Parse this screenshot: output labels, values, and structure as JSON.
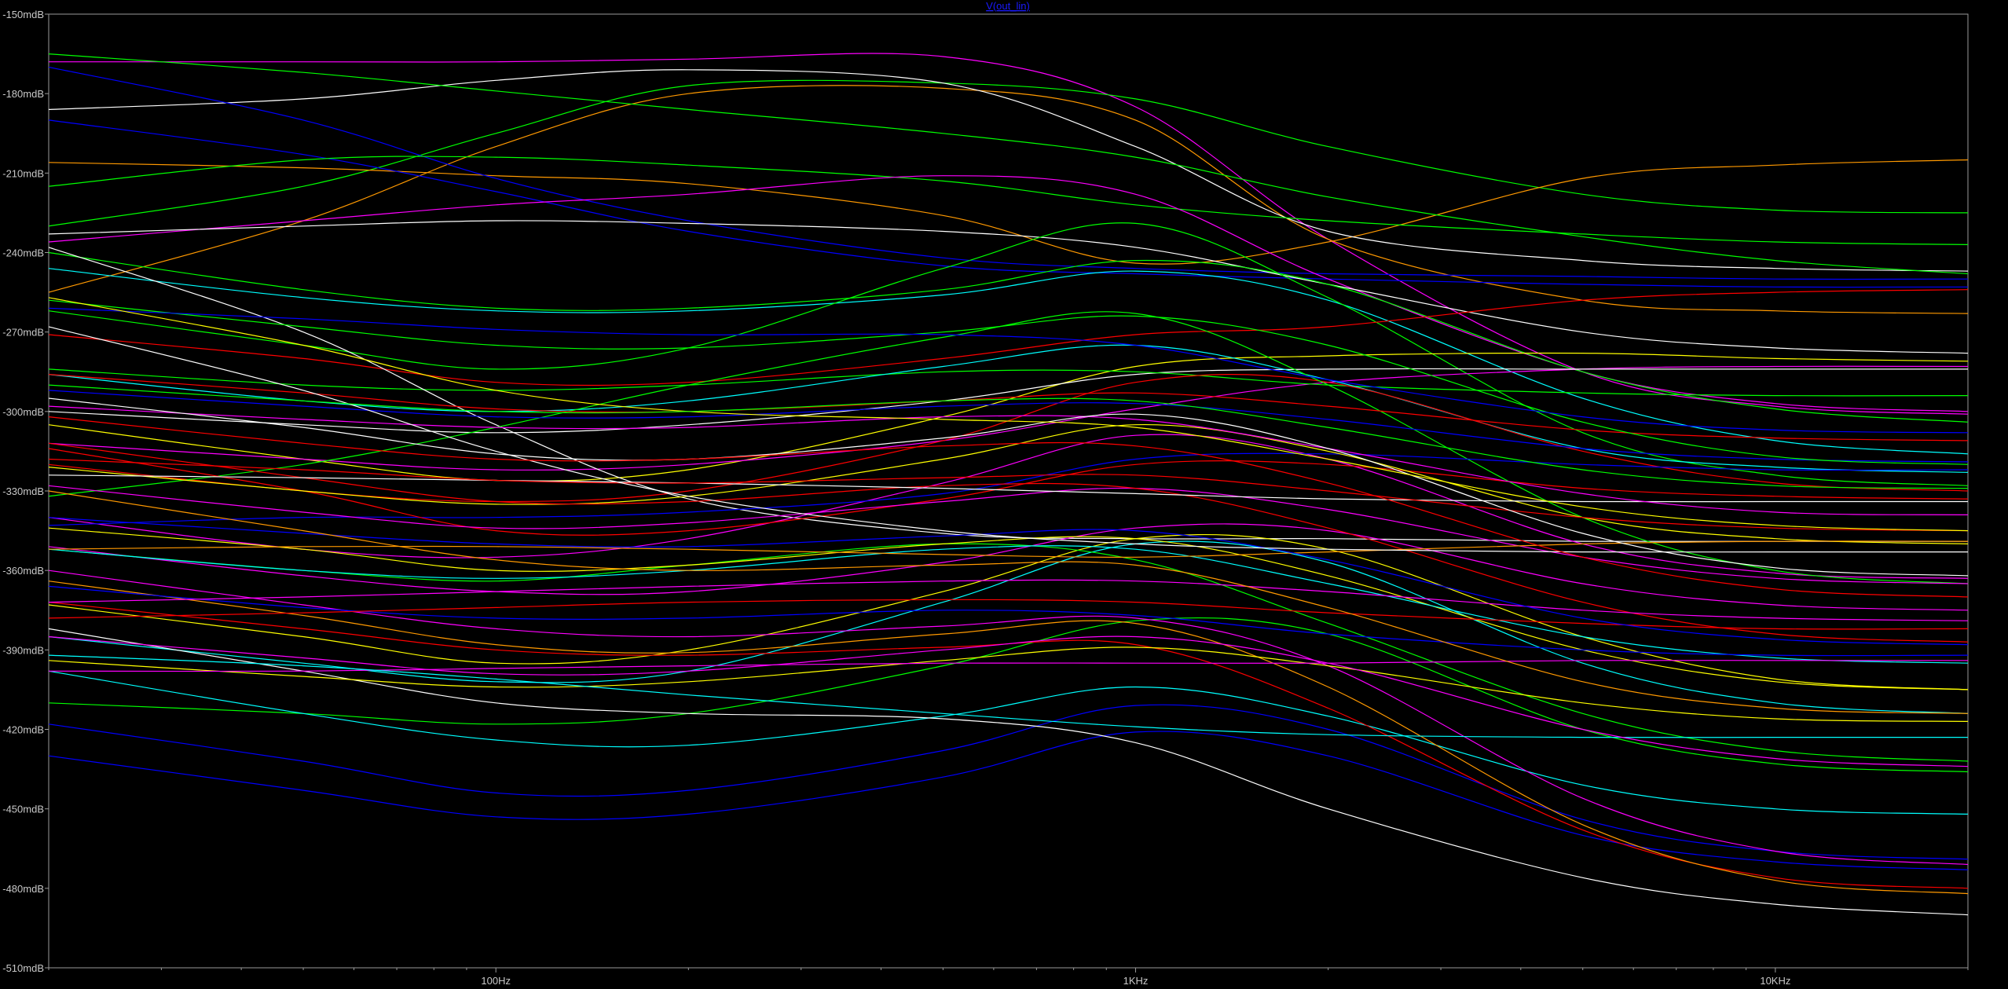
{
  "window": {
    "trace_title": "V(out_lin)"
  },
  "chart_data": {
    "type": "line",
    "title": "V(out_lin)",
    "xlabel": "",
    "ylabel": "",
    "x_scale": "log",
    "xlim": [
      20,
      20000
    ],
    "ylim": [
      -510,
      -150
    ],
    "y_unit": "mdB",
    "grid": false,
    "legend": "none",
    "x_ticks": [
      {
        "value": 100,
        "label": "100Hz"
      },
      {
        "value": 1000,
        "label": "1KHz"
      },
      {
        "value": 10000,
        "label": "10KHz"
      }
    ],
    "y_ticks": [
      {
        "value": -150,
        "label": "-150mdB"
      },
      {
        "value": -180,
        "label": "-180mdB"
      },
      {
        "value": -210,
        "label": "-210mdB"
      },
      {
        "value": -240,
        "label": "-240mdB"
      },
      {
        "value": -270,
        "label": "-270mdB"
      },
      {
        "value": -300,
        "label": "-300mdB"
      },
      {
        "value": -330,
        "label": "-330mdB"
      },
      {
        "value": -360,
        "label": "-360mdB"
      },
      {
        "value": -390,
        "label": "-390mdB"
      },
      {
        "value": -420,
        "label": "-420mdB"
      },
      {
        "value": -450,
        "label": "-450mdB"
      },
      {
        "value": -480,
        "label": "-480mdB"
      },
      {
        "value": -510,
        "label": "-510mdB"
      }
    ],
    "x": [
      20,
      50,
      100,
      200,
      500,
      1000,
      2000,
      5000,
      10000,
      20000
    ],
    "series": [
      {
        "color": "#ff00ff",
        "values": [
          -168,
          -168,
          -168,
          -167,
          -166,
          -185,
          -235,
          -285,
          -298,
          -301
        ]
      },
      {
        "color": "#00ff00",
        "values": [
          -230,
          -215,
          -195,
          -177,
          -176,
          -182,
          -200,
          -218,
          -224,
          -225
        ]
      },
      {
        "color": "#ff9900",
        "values": [
          -255,
          -228,
          -200,
          -180,
          -178,
          -190,
          -235,
          -258,
          -262,
          -263
        ]
      },
      {
        "color": "#ff9900",
        "values": [
          -206,
          -208,
          -211,
          -214,
          -226,
          -244,
          -236,
          -212,
          -207,
          -205
        ]
      },
      {
        "color": "#ffffff",
        "values": [
          -186,
          -182,
          -175,
          -171,
          -176,
          -200,
          -232,
          -243,
          -246,
          -247
        ]
      },
      {
        "color": "#00ff00",
        "values": [
          -165,
          -172,
          -179,
          -186,
          -195,
          -204,
          -219,
          -234,
          -243,
          -248
        ]
      },
      {
        "color": "#0000ff",
        "values": [
          -190,
          -203,
          -217,
          -232,
          -245,
          -248,
          -250,
          -252,
          -253,
          -253
        ]
      },
      {
        "color": "#0000ff",
        "values": [
          -170,
          -190,
          -212,
          -228,
          -242,
          -246,
          -248,
          -249,
          -250,
          -250
        ]
      },
      {
        "color": "#00ff00",
        "values": [
          -215,
          -205,
          -204,
          -207,
          -213,
          -222,
          -228,
          -233,
          -236,
          -237
        ]
      },
      {
        "color": "#ff00ff",
        "values": [
          -236,
          -228,
          -222,
          -218,
          -211,
          -218,
          -250,
          -285,
          -297,
          -300
        ]
      },
      {
        "color": "#ffffff",
        "values": [
          -233,
          -230,
          -228,
          -229,
          -232,
          -238,
          -252,
          -270,
          -276,
          -278
        ]
      },
      {
        "color": "#00ff00",
        "values": [
          -240,
          -254,
          -261,
          -261,
          -254,
          -243,
          -252,
          -285,
          -299,
          -304
        ]
      },
      {
        "color": "#00ffff",
        "values": [
          -246,
          -257,
          -262,
          -262,
          -256,
          -247,
          -258,
          -295,
          -311,
          -316
        ]
      },
      {
        "color": "#00ff00",
        "values": [
          -262,
          -275,
          -284,
          -276,
          -246,
          -229,
          -257,
          -308,
          -324,
          -328
        ]
      },
      {
        "color": "#ff0000",
        "values": [
          -271,
          -280,
          -289,
          -289,
          -280,
          -271,
          -268,
          -258,
          -255,
          -254
        ]
      },
      {
        "color": "#ffff00",
        "values": [
          -305,
          -318,
          -326,
          -322,
          -302,
          -283,
          -279,
          -278,
          -280,
          -281
        ]
      },
      {
        "color": "#ff00ff",
        "values": [
          -312,
          -318,
          -322,
          -320,
          -311,
          -299,
          -289,
          -284,
          -283,
          -283
        ]
      },
      {
        "color": "#ffffff",
        "values": [
          -300,
          -305,
          -308,
          -305,
          -296,
          -286,
          -284,
          -284,
          -284,
          -284
        ]
      },
      {
        "color": "#00ff00",
        "values": [
          -284,
          -290,
          -292,
          -290,
          -285,
          -285,
          -290,
          -293,
          -294,
          -294
        ]
      },
      {
        "color": "#00ffff",
        "values": [
          -286,
          -296,
          -300,
          -296,
          -283,
          -275,
          -288,
          -314,
          -321,
          -323
        ]
      },
      {
        "color": "#ff0000",
        "values": [
          -320,
          -330,
          -334,
          -330,
          -311,
          -289,
          -289,
          -315,
          -327,
          -330
        ]
      },
      {
        "color": "#ffffff",
        "values": [
          -238,
          -270,
          -305,
          -333,
          -346,
          -348,
          -348,
          -349,
          -349,
          -349
        ]
      },
      {
        "color": "#ff00ff",
        "values": [
          -340,
          -352,
          -355,
          -348,
          -327,
          -309,
          -318,
          -350,
          -361,
          -363
        ]
      },
      {
        "color": "#00ff00",
        "values": [
          -332,
          -320,
          -306,
          -290,
          -272,
          -263,
          -290,
          -340,
          -360,
          -365
        ]
      },
      {
        "color": "#0000ff",
        "values": [
          -343,
          -340,
          -340,
          -338,
          -331,
          -318,
          -316,
          -320,
          -322,
          -322
        ]
      },
      {
        "color": "#ff0000",
        "values": [
          -314,
          -330,
          -345,
          -345,
          -333,
          -320,
          -320,
          -329,
          -332,
          -333
        ]
      },
      {
        "color": "#ffff00",
        "values": [
          -321,
          -330,
          -335,
          -332,
          -318,
          -305,
          -315,
          -340,
          -348,
          -350
        ]
      },
      {
        "color": "#ffff00",
        "values": [
          -373,
          -385,
          -395,
          -390,
          -368,
          -348,
          -352,
          -385,
          -401,
          -405
        ]
      },
      {
        "color": "#ff00ff",
        "values": [
          -351,
          -362,
          -368,
          -368,
          -357,
          -344,
          -345,
          -365,
          -373,
          -375
        ]
      },
      {
        "color": "#00ffff",
        "values": [
          -385,
          -395,
          -402,
          -398,
          -372,
          -350,
          -357,
          -395,
          -410,
          -414
        ]
      },
      {
        "color": "#00ff00",
        "values": [
          -410,
          -414,
          -418,
          -414,
          -396,
          -379,
          -384,
          -420,
          -433,
          -436
        ]
      },
      {
        "color": "#00ffff",
        "values": [
          -398,
          -414,
          -424,
          -426,
          -415,
          -404,
          -415,
          -441,
          -450,
          -452
        ]
      },
      {
        "color": "#0000ff",
        "values": [
          -418,
          -432,
          -444,
          -443,
          -428,
          -411,
          -420,
          -454,
          -466,
          -469
        ]
      },
      {
        "color": "#0000ff",
        "values": [
          -430,
          -443,
          -453,
          -452,
          -438,
          -421,
          -430,
          -460,
          -470,
          -473
        ]
      },
      {
        "color": "#ffffff",
        "values": [
          -382,
          -398,
          -410,
          -414,
          -416,
          -425,
          -450,
          -476,
          -486,
          -490
        ]
      },
      {
        "color": "#ff0000",
        "values": [
          -372,
          -382,
          -390,
          -392,
          -389,
          -388,
          -412,
          -458,
          -476,
          -480
        ]
      },
      {
        "color": "#ff9900",
        "values": [
          -364,
          -377,
          -388,
          -391,
          -384,
          -380,
          -404,
          -456,
          -477,
          -482
        ]
      },
      {
        "color": "#ff00ff",
        "values": [
          -360,
          -373,
          -382,
          -385,
          -381,
          -378,
          -396,
          -446,
          -466,
          -471
        ]
      },
      {
        "color": "#00ff00",
        "values": [
          -352,
          -360,
          -364,
          -358,
          -350,
          -356,
          -380,
          -414,
          -428,
          -432
        ]
      },
      {
        "color": "#ffff00",
        "values": [
          -344,
          -352,
          -360,
          -358,
          -350,
          -348,
          -362,
          -390,
          -402,
          -405
        ]
      },
      {
        "color": "#ff00ff",
        "values": [
          -328,
          -338,
          -344,
          -342,
          -334,
          -329,
          -337,
          -355,
          -363,
          -365
        ]
      },
      {
        "color": "#ff0000",
        "values": [
          -312,
          -325,
          -334,
          -334,
          -328,
          -329,
          -344,
          -372,
          -384,
          -387
        ]
      },
      {
        "color": "#00ffff",
        "values": [
          -352,
          -360,
          -363,
          -360,
          -352,
          -352,
          -365,
          -385,
          -393,
          -395
        ]
      },
      {
        "color": "#ffff00",
        "values": [
          -394,
          -400,
          -404,
          -402,
          -394,
          -389,
          -396,
          -410,
          -416,
          -417
        ]
      },
      {
        "color": "#ff00ff",
        "values": [
          -398,
          -398,
          -397,
          -396,
          -395,
          -395,
          -395,
          -394,
          -394,
          -394
        ]
      },
      {
        "color": "#00ffff",
        "values": [
          -392,
          -396,
          -401,
          -407,
          -414,
          -419,
          -422,
          -423,
          -423,
          -423
        ]
      },
      {
        "color": "#0000ff",
        "values": [
          -366,
          -374,
          -378,
          -378,
          -375,
          -377,
          -384,
          -390,
          -392,
          -392
        ]
      },
      {
        "color": "#ff0000",
        "values": [
          -378,
          -376,
          -374,
          -372,
          -371,
          -372,
          -376,
          -380,
          -382,
          -382
        ]
      },
      {
        "color": "#ff9900",
        "values": [
          -352,
          -351,
          -351,
          -352,
          -354,
          -355,
          -353,
          -350,
          -349,
          -349
        ]
      },
      {
        "color": "#ffffff",
        "values": [
          -324,
          -325,
          -326,
          -327,
          -329,
          -331,
          -333,
          -334,
          -334,
          -334
        ]
      },
      {
        "color": "#ff0000",
        "values": [
          -286,
          -293,
          -299,
          -300,
          -296,
          -293,
          -298,
          -307,
          -310,
          -311
        ]
      },
      {
        "color": "#0000ff",
        "values": [
          -292,
          -298,
          -302,
          -302,
          -298,
          -297,
          -303,
          -314,
          -318,
          -319
        ]
      },
      {
        "color": "#ff00ff",
        "values": [
          -298,
          -303,
          -306,
          -306,
          -302,
          -303,
          -314,
          -331,
          -338,
          -339
        ]
      },
      {
        "color": "#00ff00",
        "values": [
          -258,
          -268,
          -275,
          -276,
          -270,
          -264,
          -275,
          -304,
          -317,
          -320
        ]
      },
      {
        "color": "#0000ff",
        "values": [
          -261,
          -265,
          -269,
          -271,
          -271,
          -275,
          -288,
          -302,
          -307,
          -308
        ]
      },
      {
        "color": "#ff0000",
        "values": [
          -318,
          -322,
          -326,
          -327,
          -325,
          -324,
          -330,
          -340,
          -344,
          -345
        ]
      },
      {
        "color": "#ffffff",
        "values": [
          -295,
          -306,
          -316,
          -318,
          -310,
          -301,
          -314,
          -346,
          -359,
          -362
        ]
      },
      {
        "color": "#ffff00",
        "values": [
          -257,
          -275,
          -292,
          -300,
          -303,
          -306,
          -318,
          -336,
          -343,
          -345
        ]
      },
      {
        "color": "#ff00ff",
        "values": [
          -372,
          -370,
          -368,
          -366,
          -364,
          -364,
          -368,
          -375,
          -378,
          -379
        ]
      },
      {
        "color": "#0000ff",
        "values": [
          -340,
          -346,
          -350,
          -351,
          -347,
          -345,
          -356,
          -378,
          -386,
          -388
        ]
      },
      {
        "color": "#ffffff",
        "values": [
          -268,
          -292,
          -315,
          -332,
          -345,
          -350,
          -352,
          -353,
          -353,
          -353
        ]
      },
      {
        "color": "#ff9900",
        "values": [
          -330,
          -345,
          -356,
          -360,
          -358,
          -358,
          -374,
          -402,
          -412,
          -414
        ]
      },
      {
        "color": "#00ff00",
        "values": [
          -290,
          -296,
          -300,
          -300,
          -296,
          -296,
          -306,
          -322,
          -328,
          -329
        ]
      },
      {
        "color": "#ff0000",
        "values": [
          -302,
          -312,
          -318,
          -318,
          -313,
          -313,
          -327,
          -355,
          -367,
          -370
        ]
      },
      {
        "color": "#ff00ff",
        "values": [
          -385,
          -393,
          -399,
          -398,
          -390,
          -385,
          -395,
          -420,
          -431,
          -434
        ]
      }
    ]
  }
}
